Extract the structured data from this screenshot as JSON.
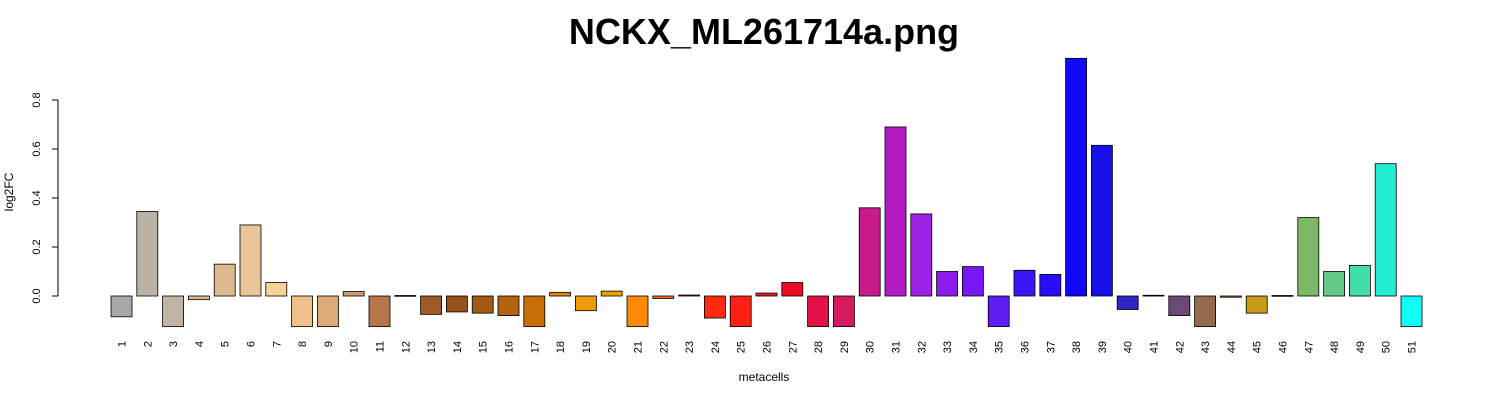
{
  "chart_data": {
    "type": "bar",
    "title": "NCKX_ML261714a.png",
    "xlabel": "metacells",
    "ylabel": "log2FC",
    "ylim": [
      -0.125,
      0.97
    ],
    "yticks": [
      "0.0",
      "0.2",
      "0.4",
      "0.6",
      "0.8"
    ],
    "ytick_values": [
      0.0,
      0.2,
      0.4,
      0.6,
      0.8
    ],
    "grid": false,
    "categories": [
      "1",
      "2",
      "3",
      "4",
      "5",
      "6",
      "7",
      "8",
      "9",
      "10",
      "11",
      "12",
      "13",
      "14",
      "15",
      "16",
      "17",
      "18",
      "19",
      "20",
      "21",
      "22",
      "23",
      "24",
      "25",
      "26",
      "27",
      "28",
      "29",
      "30",
      "31",
      "32",
      "33",
      "34",
      "35",
      "36",
      "37",
      "38",
      "39",
      "40",
      "41",
      "42",
      "43",
      "44",
      "45",
      "46",
      "47",
      "48",
      "49",
      "50",
      "51"
    ],
    "values": [
      -0.085,
      0.345,
      -0.125,
      -0.015,
      0.13,
      0.29,
      0.055,
      -0.125,
      -0.125,
      0.018,
      -0.125,
      0.002,
      -0.075,
      -0.065,
      -0.07,
      -0.08,
      -0.125,
      0.015,
      -0.06,
      0.02,
      -0.125,
      -0.01,
      0.004,
      -0.09,
      -0.125,
      0.012,
      0.055,
      -0.125,
      -0.125,
      0.36,
      0.69,
      0.335,
      0.1,
      0.12,
      -0.125,
      0.105,
      0.088,
      0.97,
      0.615,
      -0.055,
      0.003,
      -0.08,
      -0.125,
      -0.005,
      -0.07,
      0.002,
      0.32,
      0.1,
      0.125,
      0.54,
      -0.125
    ],
    "colors": [
      "#a8a8a8",
      "#bbb2a6",
      "#c2b4a2",
      "#d7b99a",
      "#deb990",
      "#e8c699",
      "#f7d29a",
      "#f0c08a",
      "#deaa75",
      "#d19a68",
      "#b5764a",
      "#a86430",
      "#9e5a25",
      "#96521a",
      "#a25912",
      "#b4640e",
      "#c86e05",
      "#df8405",
      "#ef9905",
      "#eea005",
      "#fc8a08",
      "#fc6c20",
      "#fd3c18",
      "#ff2a12",
      "#fd2014",
      "#f41a1c",
      "#ee0c22",
      "#e41048",
      "#d51a61",
      "#c91a8d",
      "#b01cc1",
      "#9e22e5",
      "#8c1ced",
      "#7618f3",
      "#5e1cf3",
      "#3a18f5",
      "#280ef8",
      "#1208f8",
      "#1810e8",
      "#2e24c8",
      "#4a3cad",
      "#6b4a75",
      "#946a50",
      "#a7821e",
      "#c89a18",
      "#a0b048",
      "#7cb868",
      "#64c888",
      "#44dcaa",
      "#22eed4",
      "#10fcf6"
    ]
  }
}
